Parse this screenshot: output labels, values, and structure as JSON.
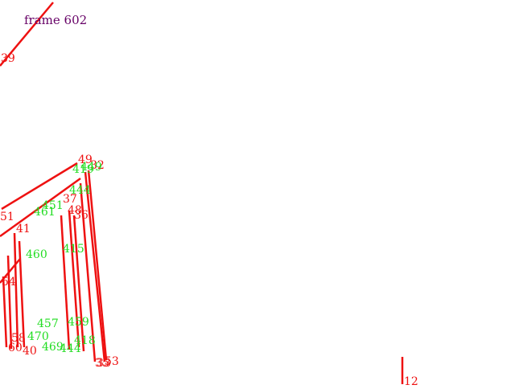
{
  "frame": {
    "label": "frame 602"
  },
  "colors": {
    "frame_label": "#660066",
    "red": "#ee1111",
    "green": "#22dd22"
  },
  "red_labels": [
    "39",
    "49",
    "32",
    "53",
    "51",
    "37",
    "48",
    "35",
    "41",
    "54",
    "60",
    "40",
    "58",
    "36",
    "33",
    "12"
  ],
  "green_labels": [
    "419",
    "449",
    "461",
    "444",
    "451",
    "460",
    "415",
    "457",
    "459",
    "470",
    "469",
    "444",
    "418"
  ]
}
